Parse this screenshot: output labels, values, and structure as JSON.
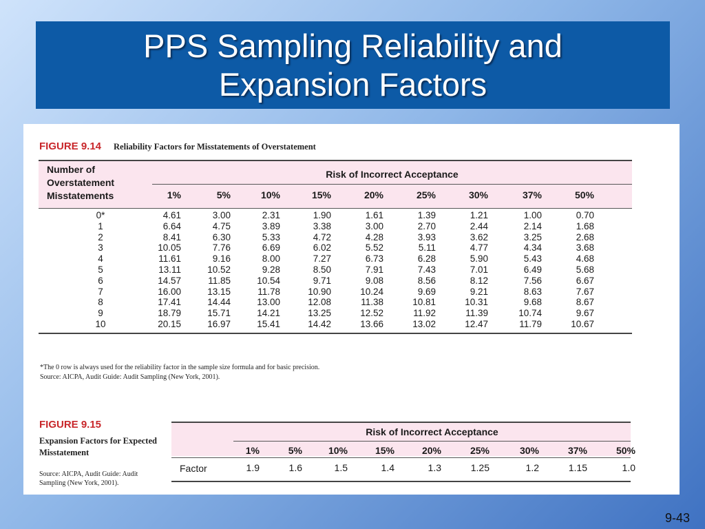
{
  "title": {
    "line1": "PPS Sampling Reliability and",
    "line2": "Expansion Factors"
  },
  "figure1": {
    "label": "FIGURE 9.14",
    "caption": "Reliability Factors for Misstatements of Overstatement",
    "row_header": [
      "Number of",
      "Overstatement",
      "Misstatements"
    ],
    "risk_title": "Risk of Incorrect Acceptance",
    "columns": [
      "1%",
      "5%",
      "10%",
      "15%",
      "20%",
      "25%",
      "30%",
      "37%",
      "50%"
    ],
    "rows": [
      {
        "label": "0*",
        "values": [
          "4.61",
          "3.00",
          "2.31",
          "1.90",
          "1.61",
          "1.39",
          "1.21",
          "1.00",
          "0.70"
        ]
      },
      {
        "label": "1",
        "values": [
          "6.64",
          "4.75",
          "3.89",
          "3.38",
          "3.00",
          "2.70",
          "2.44",
          "2.14",
          "1.68"
        ]
      },
      {
        "label": "2",
        "values": [
          "8.41",
          "6.30",
          "5.33",
          "4.72",
          "4.28",
          "3.93",
          "3.62",
          "3.25",
          "2.68"
        ]
      },
      {
        "label": "3",
        "values": [
          "10.05",
          "7.76",
          "6.69",
          "6.02",
          "5.52",
          "5.11",
          "4.77",
          "4.34",
          "3.68"
        ]
      },
      {
        "label": "4",
        "values": [
          "11.61",
          "9.16",
          "8.00",
          "7.27",
          "6.73",
          "6.28",
          "5.90",
          "5.43",
          "4.68"
        ]
      },
      {
        "label": "5",
        "values": [
          "13.11",
          "10.52",
          "9.28",
          "8.50",
          "7.91",
          "7.43",
          "7.01",
          "6.49",
          "5.68"
        ]
      },
      {
        "label": "6",
        "values": [
          "14.57",
          "11.85",
          "10.54",
          "9.71",
          "9.08",
          "8.56",
          "8.12",
          "7.56",
          "6.67"
        ]
      },
      {
        "label": "7",
        "values": [
          "16.00",
          "13.15",
          "11.78",
          "10.90",
          "10.24",
          "9.69",
          "9.21",
          "8.63",
          "7.67"
        ]
      },
      {
        "label": "8",
        "values": [
          "17.41",
          "14.44",
          "13.00",
          "12.08",
          "11.38",
          "10.81",
          "10.31",
          "9.68",
          "8.67"
        ]
      },
      {
        "label": "9",
        "values": [
          "18.79",
          "15.71",
          "14.21",
          "13.25",
          "12.52",
          "11.92",
          "11.39",
          "10.74",
          "9.67"
        ]
      },
      {
        "label": "10",
        "values": [
          "20.15",
          "16.97",
          "15.41",
          "14.42",
          "13.66",
          "13.02",
          "12.47",
          "11.79",
          "10.67"
        ]
      }
    ],
    "footnote": "*The 0 row is always used for the reliability factor in the sample size formula and for basic precision.",
    "source": "Source: AICPA, Audit Guide: Audit Sampling (New York, 2001)."
  },
  "figure2": {
    "label": "FIGURE 9.15",
    "caption": "Expansion Factors for Expected Misstatement",
    "source": "Source: AICPA, Audit Guide: Audit Sampling (New York, 2001).",
    "risk_title": "Risk of Incorrect Acceptance",
    "columns": [
      "1%",
      "5%",
      "10%",
      "15%",
      "20%",
      "25%",
      "30%",
      "37%",
      "50%"
    ],
    "row_label": "Factor",
    "values": [
      "1.9",
      "1.6",
      "1.5",
      "1.4",
      "1.3",
      "1.25",
      "1.2",
      "1.15",
      "1.0"
    ]
  },
  "slide_number": "9-43",
  "colors": {
    "title_bg": "#0d5aa6",
    "figure_label": "#c8262a",
    "table_header_bg": "#fbe5ee"
  }
}
